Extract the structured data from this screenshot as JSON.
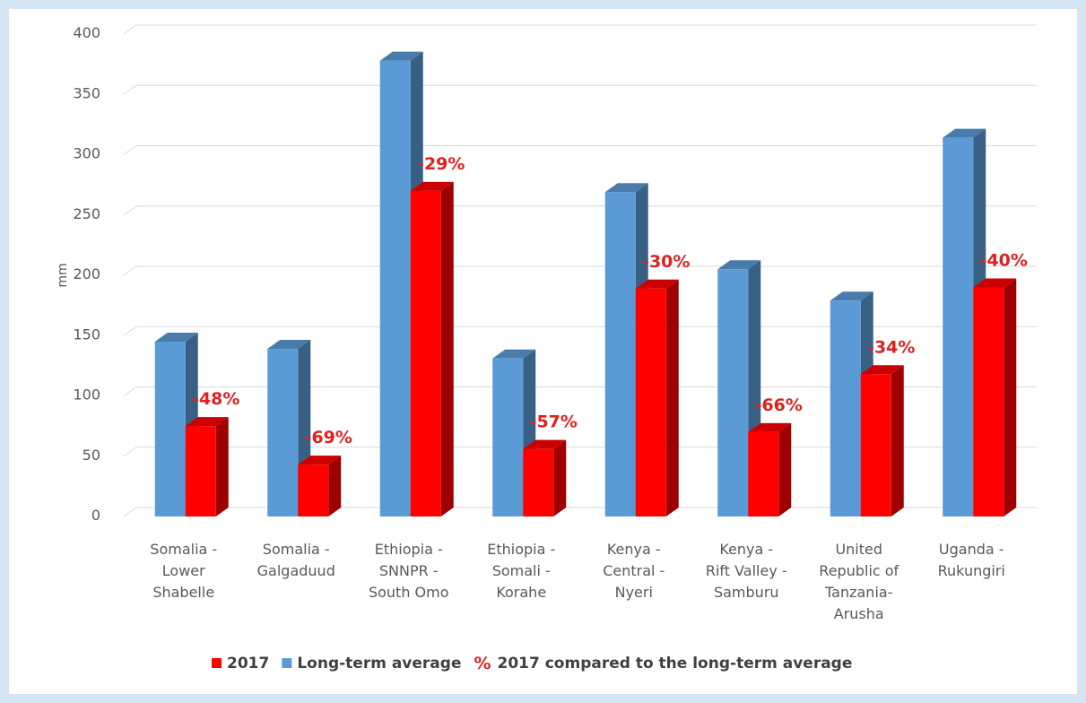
{
  "chart_data": {
    "type": "bar",
    "title": "",
    "xlabel": "",
    "ylabel": "mm",
    "ylim": [
      0,
      400
    ],
    "yticks": [
      0,
      50,
      100,
      150,
      200,
      250,
      300,
      350,
      400
    ],
    "grid": true,
    "legend_position": "bottom",
    "categories": [
      [
        "Somalia -",
        "Lower",
        "Shabelle"
      ],
      [
        "Somalia -",
        "Galgaduud"
      ],
      [
        "Ethiopia -",
        "SNNPR -",
        "South Omo"
      ],
      [
        "Ethiopia -",
        "Somali -",
        "Korahe"
      ],
      [
        "Kenya -",
        "Central -",
        "Nyeri"
      ],
      [
        "Kenya -",
        "Rift Valley -",
        "Samburu"
      ],
      [
        "United",
        "Republic of",
        "Tanzania-",
        "Arusha"
      ],
      [
        "Uganda -",
        "Rukungiri"
      ]
    ],
    "series": [
      {
        "name": "Long-term average",
        "color": "#5b9bd5",
        "values": [
          145,
          139,
          378,
          131,
          269,
          205,
          179,
          314
        ]
      },
      {
        "name": "2017",
        "color": "#ff0000",
        "values": [
          75,
          43,
          270,
          56,
          189,
          70,
          118,
          190
        ]
      }
    ],
    "annotations": [
      "-48%",
      "-69%",
      "-29%",
      "-57%",
      "-30%",
      "-66%",
      "-34%",
      "-40%"
    ],
    "legend": {
      "items": [
        {
          "label": "2017",
          "color": "#ff0000",
          "marker": "square"
        },
        {
          "label": "Long-term average",
          "color": "#5b9bd5",
          "marker": "square"
        },
        {
          "label": "2017 compared to the long-term average",
          "color": "#e02020",
          "marker": "%"
        }
      ]
    }
  }
}
